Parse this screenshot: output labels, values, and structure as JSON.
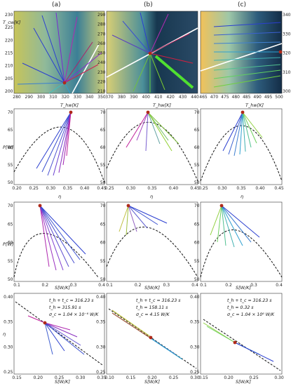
{
  "panels": {
    "a": "(a)",
    "b": "(b)",
    "c": "(c)"
  },
  "row1": {
    "ylabel": "T_cw[K]",
    "xlabel": "T_hw[K]",
    "a": {
      "xticks": [
        "280",
        "290",
        "300",
        "310",
        "320",
        "330",
        "340",
        "350"
      ],
      "yticks": [
        "200",
        "205",
        "210",
        "215",
        "220",
        "225",
        "230"
      ]
    },
    "b": {
      "xticks": [
        "370",
        "380",
        "390",
        "400",
        "410",
        "420",
        "430",
        "440"
      ],
      "yticks": [
        "210",
        "220",
        "230",
        "240",
        "250",
        "260",
        "270",
        "280",
        "290"
      ]
    },
    "c": {
      "xticks": [
        "465",
        "470",
        "475",
        "480",
        "485",
        "490",
        "495",
        "500"
      ],
      "yticks": [
        "300",
        "310",
        "320",
        "330",
        "340"
      ]
    }
  },
  "row2": {
    "ylabel": "P[W]",
    "xlabel": "η",
    "a": {
      "xticks": [
        "0.20",
        "0.25",
        "0.30",
        "0.35",
        "0.40",
        "0.45"
      ],
      "yticks": [
        "50",
        "55",
        "60",
        "65",
        "70"
      ]
    },
    "b": {
      "xticks": [
        "0.25",
        "0.30",
        "0.35",
        "0.40",
        "0.45"
      ],
      "yticks": [
        "50",
        "55",
        "60",
        "65",
        "70"
      ]
    },
    "c": {
      "xticks": [
        "0.25",
        "0.30",
        "0.35",
        "0.40",
        "0.45"
      ],
      "yticks": [
        "50",
        "55",
        "60",
        "65",
        "70"
      ]
    }
  },
  "row3": {
    "ylabel": "P[W]",
    "xlabel": "S[W/K]",
    "a": {
      "xticks": [
        "0.1",
        "0.2",
        "0.3",
        "0.4"
      ],
      "yticks": [
        "50",
        "55",
        "60",
        "65",
        "70"
      ]
    },
    "b": {
      "xticks": [
        "0.1",
        "0.2",
        "0.3",
        "0.4"
      ],
      "yticks": [
        "50",
        "55",
        "60",
        "65",
        "70"
      ]
    },
    "c": {
      "xticks": [
        "0.1",
        "0.2",
        "0.3",
        "0.4"
      ],
      "yticks": [
        "50",
        "55",
        "60",
        "65",
        "70"
      ]
    }
  },
  "row4": {
    "ylabel": "η",
    "xlabel": "S[W/K]",
    "a": {
      "xticks": [
        "0.15",
        "0.20",
        "0.25",
        "0.30",
        "0.35"
      ],
      "yticks": [
        "0.25",
        "0.30",
        "0.35",
        "0.40"
      ],
      "ann": [
        "t_h + t_c = 316.23 s",
        "t_h = 315.91 s",
        "σ_c = 1.04 × 10⁻⁶ W/K"
      ]
    },
    "b": {
      "xticks": [
        "0.10",
        "0.15",
        "0.20",
        "0.25",
        "0.30"
      ],
      "yticks": [
        "0.25",
        "0.30",
        "0.35",
        "0.40"
      ],
      "ann": [
        "t_h + t_c = 316.23 s",
        "t_h = 158.11 s",
        "σ_c = 4.15 W/K"
      ]
    },
    "c": {
      "xticks": [
        "0.15",
        "0.20",
        "0.25",
        "0.30"
      ],
      "yticks": [
        "0.25",
        "0.30",
        "0.35",
        "0.40"
      ],
      "ann": [
        "t_h + t_c = 316.23 s",
        "t_h = 0.32 s",
        "σ_c = 1.04 × 10⁶ W/K"
      ]
    }
  }
}
